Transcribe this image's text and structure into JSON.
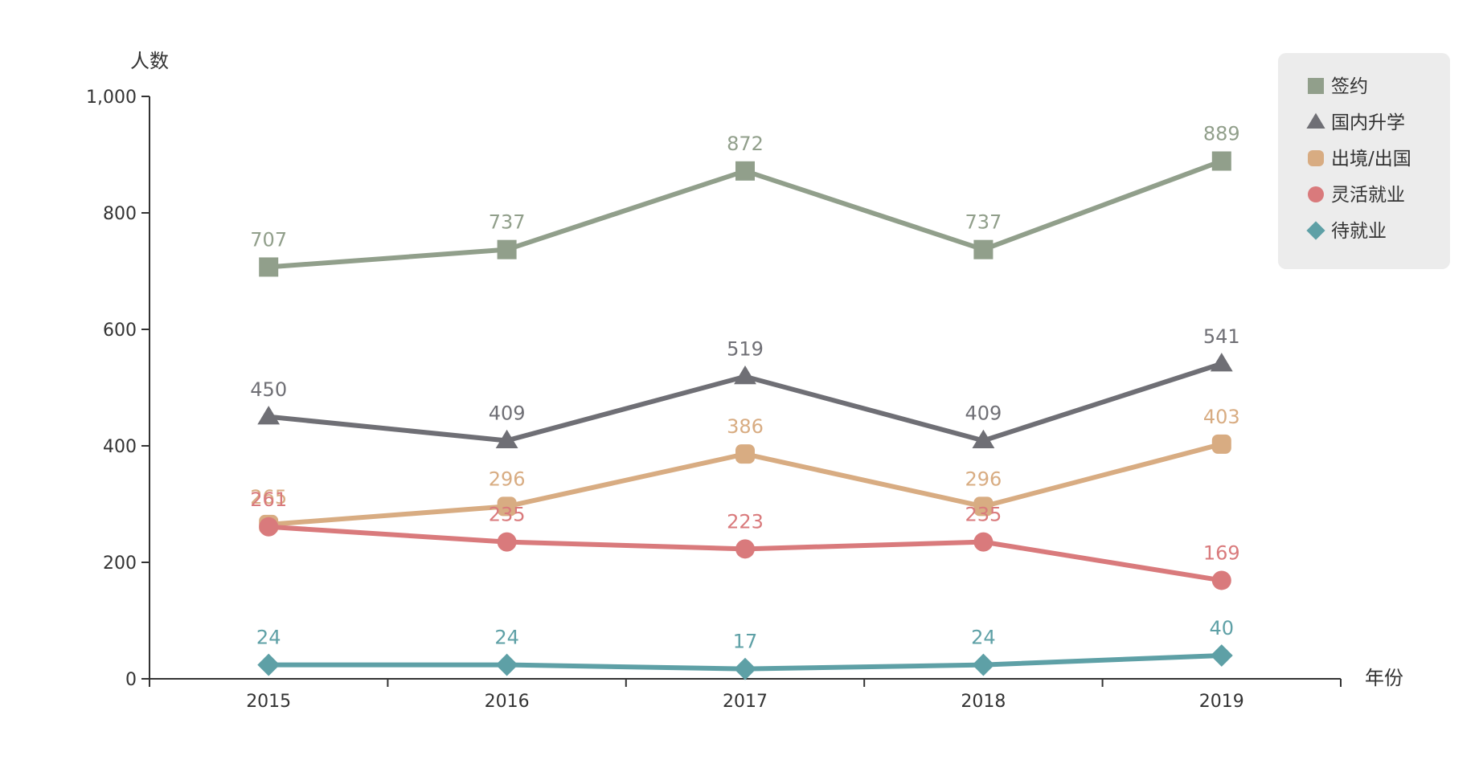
{
  "chart_data": {
    "type": "line",
    "categories": [
      "2015",
      "2016",
      "2017",
      "2018",
      "2019"
    ],
    "xlabel": "年份",
    "ylabel": "人数",
    "ylim": [
      0,
      1000
    ],
    "yticks": [
      0,
      200,
      400,
      600,
      800,
      1000
    ],
    "ytick_labels": [
      "0",
      "200",
      "400",
      "600",
      "800",
      "1,000"
    ],
    "grid": false,
    "legend_position": "top-right",
    "series": [
      {
        "name": "签约",
        "values": [
          707,
          737,
          872,
          737,
          889
        ],
        "color": "#919f8b",
        "marker": "square"
      },
      {
        "name": "国内升学",
        "values": [
          450,
          409,
          519,
          409,
          541
        ],
        "color": "#6f6f75",
        "marker": "triangle"
      },
      {
        "name": "出境/出国",
        "values": [
          265,
          296,
          386,
          296,
          403
        ],
        "color": "#d8ac82",
        "marker": "roundrect"
      },
      {
        "name": "灵活就业",
        "values": [
          261,
          235,
          223,
          235,
          169
        ],
        "color": "#d97a7c",
        "marker": "circle"
      },
      {
        "name": "待就业",
        "values": [
          24,
          24,
          17,
          24,
          40
        ],
        "color": "#5ea0a6",
        "marker": "diamond"
      }
    ]
  }
}
